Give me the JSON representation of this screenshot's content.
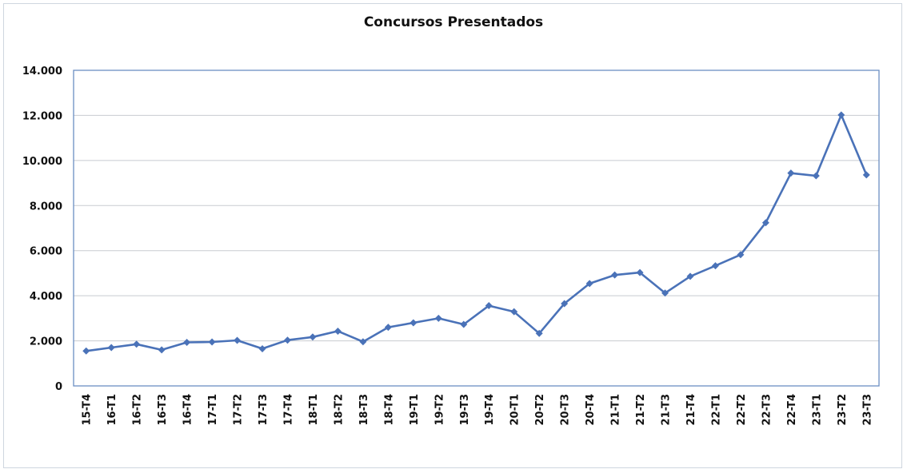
{
  "chart_data": {
    "type": "line",
    "title": "Concursos Presentados",
    "xlabel": "",
    "ylabel": "",
    "ylim": [
      0,
      14000
    ],
    "yticks": [
      0,
      2000,
      4000,
      6000,
      8000,
      10000,
      12000,
      14000
    ],
    "ytick_labels": [
      "0",
      "2.000",
      "4.000",
      "6.000",
      "8.000",
      "10.000",
      "12.000",
      "14.000"
    ],
    "grid": true,
    "legend": "none",
    "colors": {
      "line": "#4a72b8",
      "grid": "#c8cbd0",
      "plot_border": "#6b8fc4"
    },
    "categories": [
      "15-T4",
      "16-T1",
      "16-T2",
      "16-T3",
      "16-T4",
      "17-T1",
      "17-T2",
      "17-T3",
      "17-T4",
      "18-T1",
      "18-T2",
      "18-T3",
      "18-T4",
      "19-T1",
      "19-T2",
      "19-T3",
      "19-T4",
      "20-T1",
      "20-T2",
      "20-T3",
      "20-T4",
      "21-T1",
      "21-T2",
      "21-T3",
      "21-T4",
      "22-T1",
      "22-T2",
      "22-T3",
      "22-T4",
      "23-T1",
      "23-T2",
      "23-T3"
    ],
    "series": [
      {
        "values": [
          1550,
          1700,
          1850,
          1600,
          1930,
          1950,
          2020,
          1650,
          2030,
          2170,
          2430,
          1960,
          2600,
          2800,
          3000,
          2730,
          3560,
          3290,
          2330,
          3650,
          4540,
          4920,
          5030,
          4120,
          4860,
          5330,
          5820,
          7240,
          9440,
          9320,
          12020,
          9360
        ]
      }
    ]
  }
}
